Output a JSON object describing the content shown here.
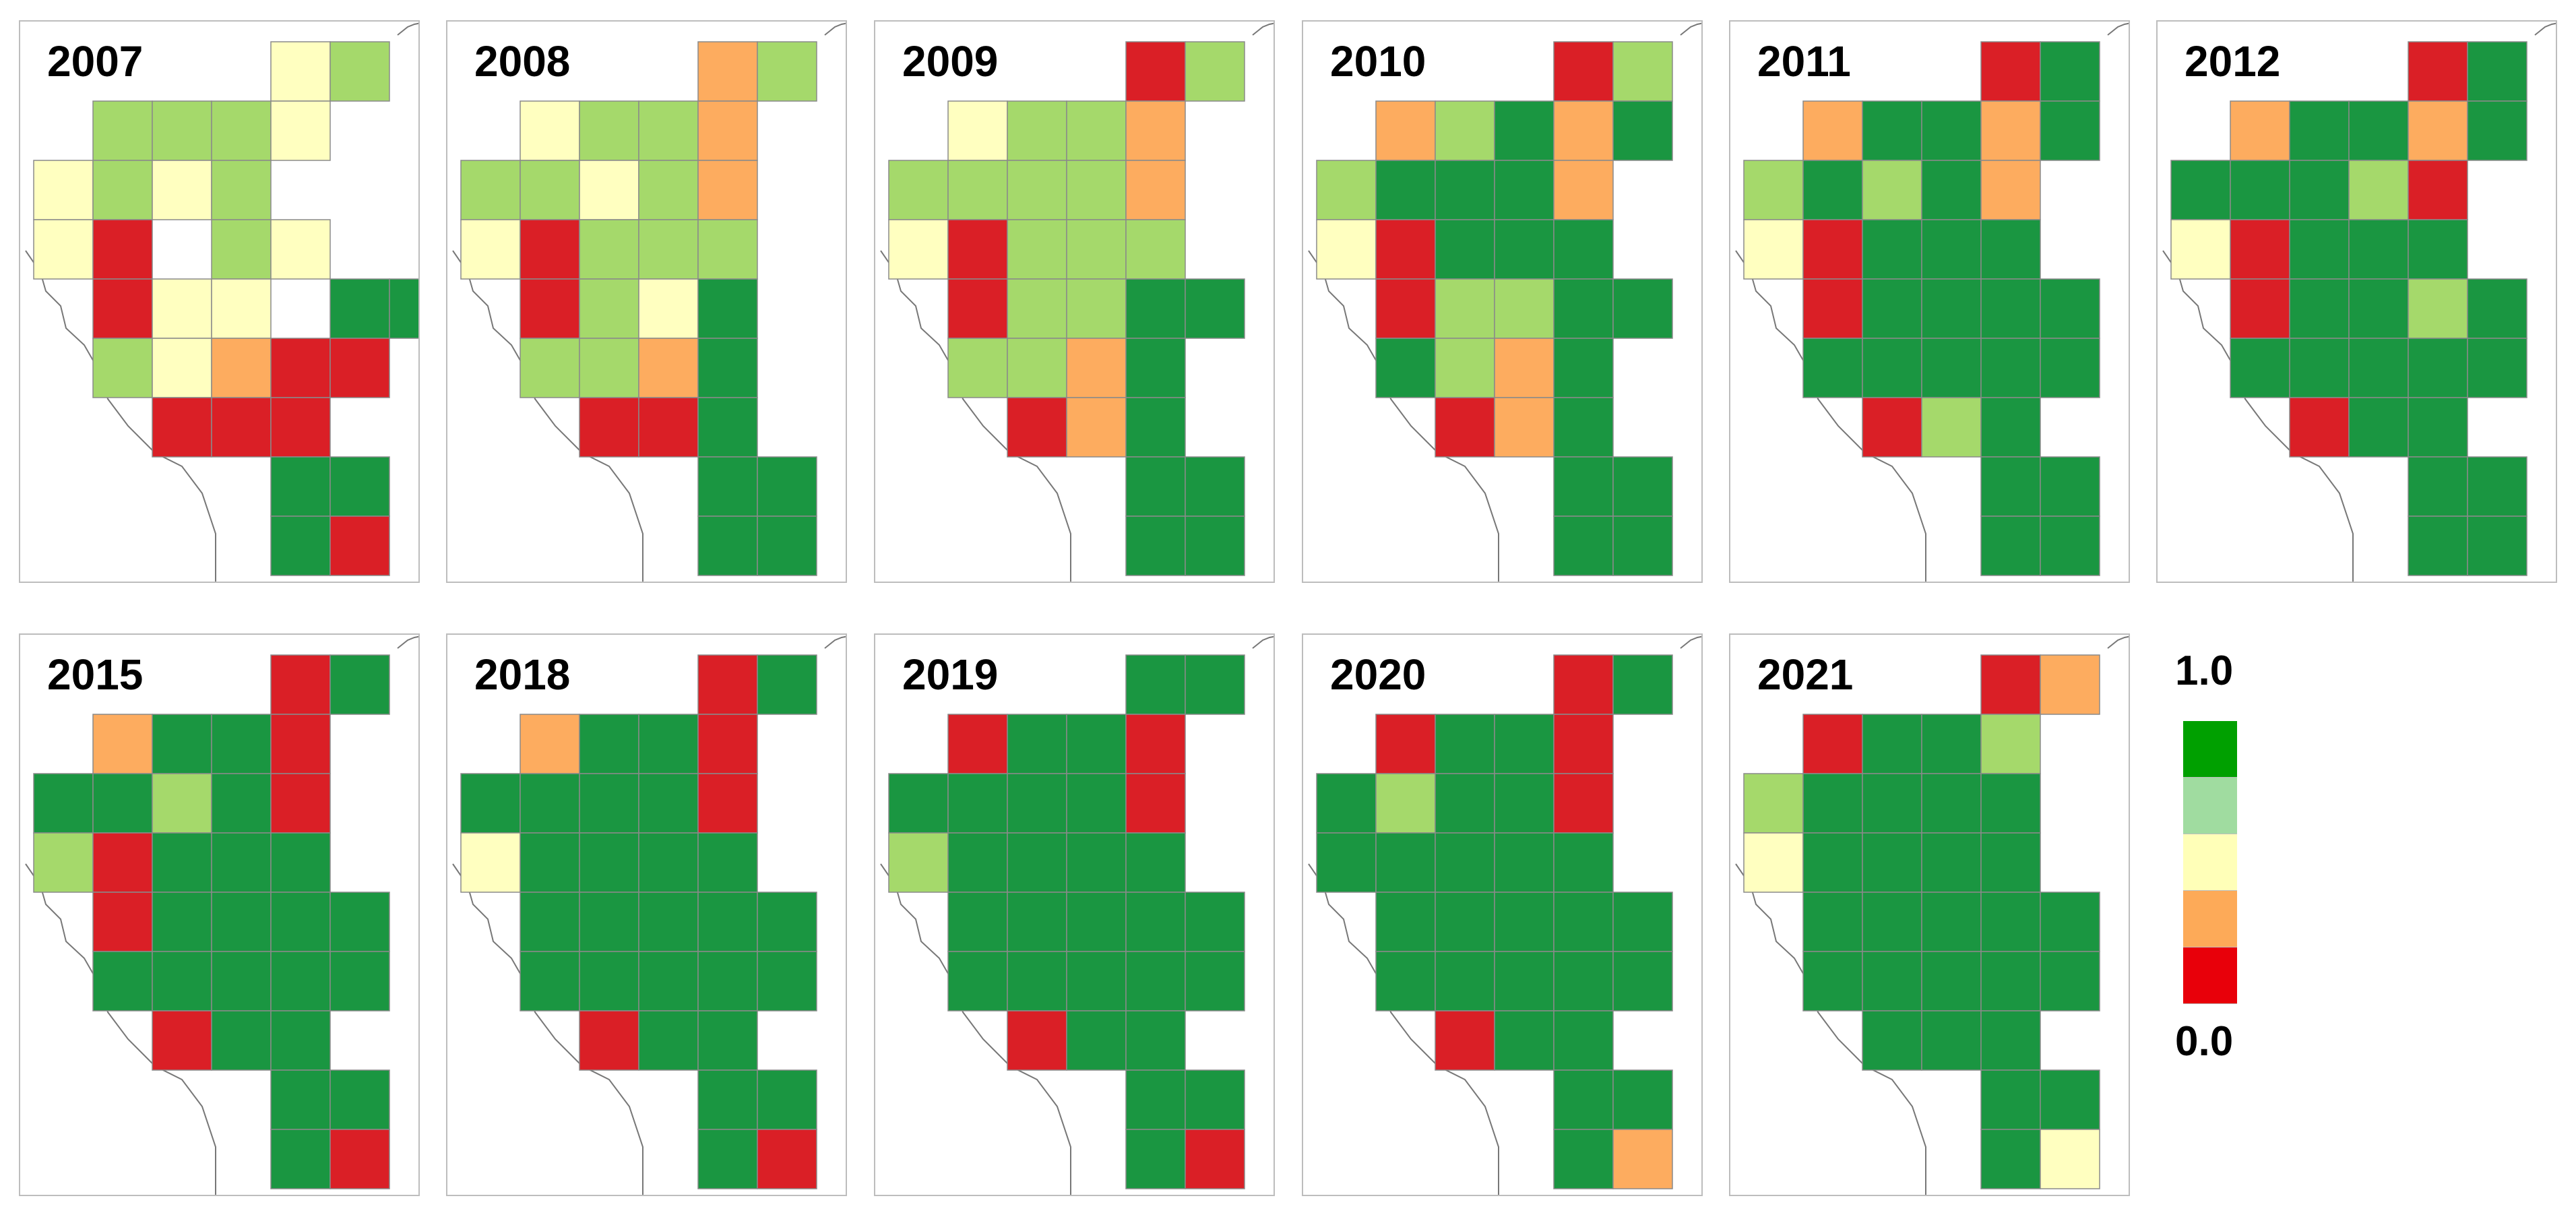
{
  "colors": {
    "0": "#da1f26",
    "1": "#fdac5f",
    "2": "#ffffc0",
    "3": "#a5d96b",
    "4": "#1a9641"
  },
  "legend": {
    "top_label": "1.0",
    "bottom_label": "0.0",
    "swatches": [
      "#00a000",
      "#a0dca0",
      "#ffffb8",
      "#fdaa58",
      "#e8000a"
    ]
  },
  "panels": [
    {
      "year": "2007",
      "rows": [
        "....23",
        ".3332.",
        "2323.",
        "20.32..",
        ".022.44",
        ".32100",
        "..000",
        "....44",
        "....40"
      ]
    },
    {
      "year": "2008",
      "rows": [
        "....13",
        ".2331.",
        "33231.",
        "20333..",
        ".0324",
        ".3314",
        "..004",
        "....44",
        "....44"
      ]
    },
    {
      "year": "2009",
      "rows": [
        "....03",
        ".2331.",
        "33331.",
        "20333..",
        ".03344",
        ".3314",
        "..014",
        "....44",
        "....44"
      ]
    },
    {
      "year": "2010",
      "rows": [
        "....03",
        ".13414",
        "34441.",
        "20444..",
        ".03344",
        ".4314",
        "..014",
        "....44",
        "....44"
      ]
    },
    {
      "year": "2011",
      "rows": [
        "....04",
        ".14414",
        "34341.",
        "20444..",
        ".04444",
        ".44444",
        "..034",
        "....44",
        "....44"
      ]
    },
    {
      "year": "2012",
      "rows": [
        "....04",
        ".14414",
        "44430.",
        "20444..",
        ".04434",
        ".44444",
        "..044",
        "....44",
        "....44"
      ]
    },
    {
      "year": "2015",
      "rows": [
        "....04",
        ".1440.",
        "44340.",
        "30444..",
        ".04444",
        ".44444",
        "..044",
        "....44",
        "....40"
      ]
    },
    {
      "year": "2018",
      "rows": [
        "....04",
        ".1440.",
        "44440.",
        "24444..",
        ".44444",
        ".44444",
        "..044",
        "....44",
        "....40"
      ]
    },
    {
      "year": "2019",
      "rows": [
        "....44",
        ".0440.",
        "44440.",
        "34444..",
        ".44444",
        ".44444",
        "..044",
        "....44",
        "....40"
      ]
    },
    {
      "year": "2020",
      "rows": [
        "....04",
        ".0440.",
        "43440.",
        "44444..",
        ".44444",
        ".44444",
        "..044",
        "....44",
        "....41"
      ]
    },
    {
      "year": "2021",
      "rows": [
        "....01",
        ".0443.",
        "34444.",
        "24444..",
        ".44444",
        ".44444",
        "..444",
        "....44",
        "....42"
      ]
    }
  ]
}
